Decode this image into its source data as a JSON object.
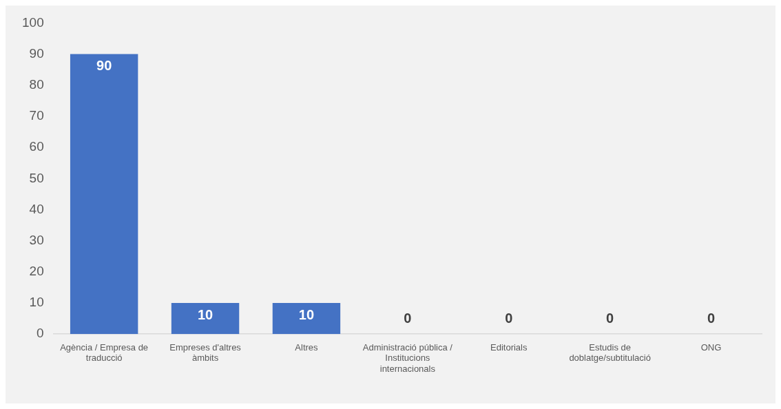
{
  "chart_data": {
    "type": "bar",
    "categories": [
      "Agència / Empresa de traducció",
      "Empreses d'altres àmbits",
      "Altres",
      "Administració pública / Institucions internacionals",
      "Editorials",
      "Estudis de doblatge/subtitulació",
      "ONG"
    ],
    "values": [
      90,
      10,
      10,
      0,
      0,
      0,
      0
    ],
    "color": "#4472c4",
    "ylim": [
      0,
      100
    ],
    "yticks": [
      0,
      10,
      20,
      30,
      40,
      50,
      60,
      70,
      80,
      90,
      100
    ],
    "grid": false,
    "data_labels": true
  }
}
